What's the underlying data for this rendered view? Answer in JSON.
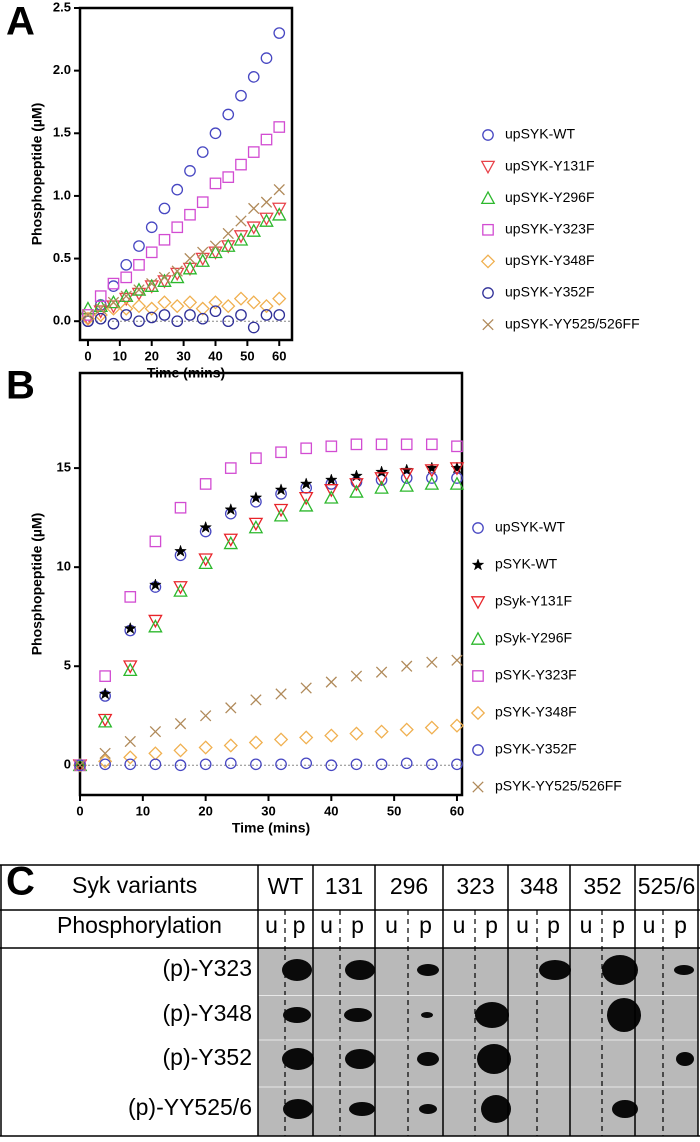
{
  "panels": [
    "A",
    "B",
    "C"
  ],
  "chart_data": [
    {
      "type": "scatter",
      "y_label": "Phosphopeptide (µM)",
      "x_label": "Time (mins)",
      "x": [
        0,
        4,
        8,
        12,
        16,
        20,
        24,
        28,
        32,
        36,
        40,
        44,
        48,
        52,
        56,
        60
      ],
      "xlim": [
        -2.5,
        64
      ],
      "ylim": [
        -0.15,
        2.5
      ],
      "xticks": [
        0,
        10,
        20,
        30,
        40,
        50,
        60
      ],
      "yticks": [
        {
          "value": 0,
          "label": "0.0"
        },
        0.5,
        {
          "value": 1,
          "label": "1.0"
        },
        1.5,
        {
          "value": 2,
          "label": "2.0"
        },
        2.5
      ],
      "series": [
        {
          "name": "upSYK-WT",
          "color": "#4747c2",
          "marker": "circle",
          "values": [
            0,
            0.13,
            0.28,
            0.45,
            0.6,
            0.75,
            0.9,
            1.05,
            1.2,
            1.35,
            1.5,
            1.65,
            1.8,
            1.95,
            2.1,
            2.3
          ]
        },
        {
          "name": "upSYK-Y131F",
          "color": "#e8424a",
          "marker": "triangle-down",
          "values": [
            0.02,
            0.08,
            0.12,
            0.18,
            0.22,
            0.28,
            0.32,
            0.38,
            0.42,
            0.5,
            0.55,
            0.6,
            0.68,
            0.75,
            0.82,
            0.9
          ]
        },
        {
          "name": "upSYK-Y296F",
          "color": "#2db82d",
          "marker": "triangle-up",
          "values": [
            0.1,
            0.12,
            0.15,
            0.2,
            0.25,
            0.28,
            0.32,
            0.35,
            0.42,
            0.48,
            0.55,
            0.6,
            0.65,
            0.72,
            0.8,
            0.85
          ]
        },
        {
          "name": "upSYK-Y323F",
          "color": "#d24cd2",
          "marker": "square",
          "values": [
            0.05,
            0.2,
            0.3,
            0.35,
            0.45,
            0.55,
            0.65,
            0.75,
            0.85,
            0.95,
            1.1,
            1.15,
            1.25,
            1.35,
            1.45,
            1.55
          ]
        },
        {
          "name": "upSYK-Y348F",
          "color": "#f0b050",
          "marker": "diamond",
          "values": [
            0.02,
            0.05,
            0.1,
            0.1,
            0.12,
            0.1,
            0.15,
            0.12,
            0.15,
            0.1,
            0.15,
            0.12,
            0.18,
            0.15,
            0.12,
            0.18
          ]
        },
        {
          "name": "upSYK-Y352F",
          "color": "#303098",
          "marker": "circle",
          "values": [
            0,
            0.02,
            -0.02,
            0.05,
            0,
            0.03,
            0.05,
            0,
            0.05,
            0.02,
            0.08,
            0,
            0.05,
            -0.05,
            0.05,
            0.05
          ]
        },
        {
          "name": "upSYK-YY525/526FF",
          "color": "#b08a5a",
          "marker": "x",
          "values": [
            0.05,
            0.1,
            0.15,
            0.2,
            0.25,
            0.3,
            0.35,
            0.4,
            0.5,
            0.55,
            0.6,
            0.7,
            0.8,
            0.9,
            0.95,
            1.05
          ]
        }
      ]
    },
    {
      "type": "scatter",
      "y_label": "Phosphopeptide (µM)",
      "x_label": "Time (mins)",
      "x": [
        0,
        4,
        8,
        12,
        16,
        20,
        24,
        28,
        32,
        36,
        40,
        44,
        48,
        52,
        56,
        60
      ],
      "xlim": [
        0,
        60.8
      ],
      "ylim": [
        -1.5,
        19.8
      ],
      "xticks": [
        0,
        10,
        20,
        30,
        40,
        50,
        60
      ],
      "yticks": [
        0,
        5,
        10,
        15
      ],
      "series": [
        {
          "name": "upSYK-WT",
          "color": "#4747c2",
          "marker": "circle",
          "values": [
            0,
            3.5,
            6.8,
            9,
            10.6,
            11.8,
            12.7,
            13.3,
            13.7,
            14,
            14.2,
            14.3,
            14.4,
            14.5,
            14.5,
            14.5
          ]
        },
        {
          "name": "pSYK-WT",
          "color": "#000000",
          "marker": "star",
          "values": [
            0,
            3.6,
            6.9,
            9.1,
            10.8,
            12,
            12.9,
            13.5,
            13.9,
            14.2,
            14.4,
            14.6,
            14.8,
            14.9,
            15,
            15
          ]
        },
        {
          "name": "pSyk-Y131F",
          "color": "#e8242a",
          "marker": "triangle-down",
          "values": [
            0,
            2.3,
            5,
            7.3,
            9,
            10.4,
            11.4,
            12.2,
            12.9,
            13.5,
            13.9,
            14.2,
            14.5,
            14.7,
            14.9,
            15
          ]
        },
        {
          "name": "pSyk-Y296F",
          "color": "#2db82d",
          "marker": "triangle-up",
          "values": [
            0,
            2.2,
            4.8,
            7,
            8.8,
            10.2,
            11.2,
            12,
            12.6,
            13.1,
            13.5,
            13.8,
            14,
            14.1,
            14.2,
            14.2
          ]
        },
        {
          "name": "pSYK-Y323F",
          "color": "#d24cd2",
          "marker": "square",
          "values": [
            0,
            4.5,
            8.5,
            11.3,
            13,
            14.2,
            15,
            15.5,
            15.8,
            16,
            16.1,
            16.2,
            16.2,
            16.2,
            16.2,
            16.1
          ]
        },
        {
          "name": "pSYK-Y348F",
          "color": "#f0b050",
          "marker": "diamond",
          "values": [
            0,
            0.2,
            0.4,
            0.6,
            0.75,
            0.9,
            1,
            1.15,
            1.3,
            1.4,
            1.5,
            1.6,
            1.7,
            1.8,
            1.9,
            2
          ]
        },
        {
          "name": "pSYK-Y352F",
          "color": "#4747c2",
          "marker": "circle",
          "values": [
            0,
            0.05,
            0.05,
            0.05,
            0,
            0.05,
            0.1,
            0.05,
            0.05,
            0.1,
            0,
            0.05,
            0.05,
            0.1,
            0.05,
            0.05
          ]
        },
        {
          "name": "pSYK-YY525/526FF",
          "color": "#b08a5a",
          "marker": "x",
          "values": [
            0,
            0.6,
            1.2,
            1.7,
            2.1,
            2.5,
            2.9,
            3.3,
            3.6,
            3.9,
            4.2,
            4.5,
            4.7,
            5,
            5.2,
            5.3
          ]
        }
      ]
    }
  ],
  "blot": {
    "header_label": "Syk variants",
    "sub_label": "Phosphorylation",
    "variants": [
      "WT",
      "131",
      "296",
      "323",
      "348",
      "352",
      "525/6"
    ],
    "states": [
      "u",
      "p"
    ],
    "rows": [
      "(p)-Y323",
      "(p)-Y348",
      "(p)-Y352",
      "(p)-YY525/6"
    ]
  }
}
